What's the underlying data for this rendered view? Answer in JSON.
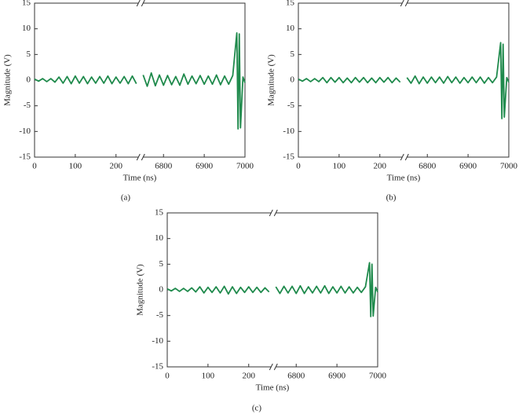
{
  "chart_data": [
    {
      "type": "line",
      "caption": "(a)",
      "xlabel": "Time (ns)",
      "ylabel": "Magnitude (V)",
      "color": "#1f8a4c",
      "ylim": [
        -15,
        15
      ],
      "yticks": [
        -15,
        -10,
        -5,
        0,
        5,
        10,
        15
      ],
      "x_segments": [
        {
          "xlim": [
            0,
            255
          ],
          "xticks": [
            0,
            100,
            200
          ]
        },
        {
          "xlim": [
            6750,
            7000
          ],
          "xticks": [
            6800,
            6900,
            7000
          ]
        }
      ],
      "x": [
        0,
        10,
        20,
        30,
        40,
        50,
        60,
        70,
        80,
        90,
        100,
        110,
        120,
        130,
        140,
        150,
        160,
        170,
        180,
        190,
        200,
        210,
        220,
        230,
        240,
        250,
        6750,
        6760,
        6770,
        6780,
        6790,
        6800,
        6810,
        6820,
        6830,
        6840,
        6850,
        6860,
        6870,
        6880,
        6890,
        6900,
        6910,
        6920,
        6930,
        6940,
        6950,
        6960,
        6970,
        6980,
        6983,
        6986,
        6989,
        6995,
        7000
      ],
      "values": [
        0.2,
        -0.2,
        0.3,
        -0.3,
        0.3,
        -0.4,
        0.6,
        -0.6,
        0.7,
        -0.7,
        0.8,
        -0.6,
        0.7,
        -0.7,
        0.6,
        -0.6,
        0.7,
        -0.6,
        0.8,
        -0.7,
        0.6,
        -0.6,
        0.7,
        -0.7,
        0.8,
        -0.7,
        1.0,
        -1.2,
        1.4,
        -1.1,
        1.0,
        -1.0,
        0.9,
        -0.9,
        0.7,
        -1.0,
        1.2,
        -0.8,
        0.8,
        -0.7,
        0.9,
        -0.8,
        0.8,
        -0.8,
        1.0,
        -0.9,
        0.8,
        -0.8,
        0.9,
        9.2,
        -9.5,
        9.0,
        -9.3,
        0.6,
        -0.5
      ]
    },
    {
      "type": "line",
      "caption": "(b)",
      "xlabel": "Time (ns)",
      "ylabel": "Magnitude (V)",
      "color": "#1f8a4c",
      "ylim": [
        -15,
        15
      ],
      "yticks": [
        -15,
        -10,
        -5,
        0,
        5,
        10,
        15
      ],
      "x_segments": [
        {
          "xlim": [
            0,
            255
          ],
          "xticks": [
            0,
            100,
            200
          ]
        },
        {
          "xlim": [
            6750,
            7000
          ],
          "xticks": [
            6800,
            6900,
            7000
          ]
        }
      ],
      "x": [
        0,
        10,
        20,
        30,
        40,
        50,
        60,
        70,
        80,
        90,
        100,
        110,
        120,
        130,
        140,
        150,
        160,
        170,
        180,
        190,
        200,
        210,
        220,
        230,
        240,
        250,
        6750,
        6760,
        6770,
        6780,
        6790,
        6800,
        6810,
        6820,
        6830,
        6840,
        6850,
        6860,
        6870,
        6880,
        6890,
        6900,
        6910,
        6920,
        6930,
        6940,
        6950,
        6960,
        6970,
        6980,
        6983,
        6986,
        6989,
        6995,
        7000
      ],
      "values": [
        0.2,
        -0.2,
        0.3,
        -0.3,
        0.3,
        -0.3,
        0.5,
        -0.5,
        0.5,
        -0.4,
        0.5,
        -0.5,
        0.4,
        -0.5,
        0.5,
        -0.4,
        0.5,
        -0.5,
        0.4,
        -0.5,
        0.5,
        -0.4,
        0.5,
        -0.5,
        0.4,
        -0.4,
        0.5,
        -0.6,
        0.8,
        -0.7,
        0.6,
        -0.6,
        0.6,
        -0.5,
        0.6,
        -0.6,
        0.7,
        -0.5,
        0.6,
        -0.6,
        0.5,
        -0.5,
        0.6,
        -0.5,
        0.6,
        -0.6,
        0.5,
        -0.5,
        0.6,
        7.3,
        -7.5,
        7.0,
        -7.2,
        0.5,
        -0.4
      ]
    },
    {
      "type": "line",
      "caption": "(c)",
      "xlabel": "Time (ns)",
      "ylabel": "Magnitude (V)",
      "color": "#1f8a4c",
      "ylim": [
        -15,
        15
      ],
      "yticks": [
        -15,
        -10,
        -5,
        0,
        5,
        10,
        15
      ],
      "x_segments": [
        {
          "xlim": [
            0,
            255
          ],
          "xticks": [
            0,
            100,
            200
          ]
        },
        {
          "xlim": [
            6750,
            7000
          ],
          "xticks": [
            6800,
            6900,
            7000
          ]
        }
      ],
      "x": [
        0,
        10,
        20,
        30,
        40,
        50,
        60,
        70,
        80,
        90,
        100,
        110,
        120,
        130,
        140,
        150,
        160,
        170,
        180,
        190,
        200,
        210,
        220,
        230,
        240,
        250,
        6750,
        6760,
        6770,
        6780,
        6790,
        6800,
        6810,
        6820,
        6830,
        6840,
        6850,
        6860,
        6870,
        6880,
        6890,
        6900,
        6910,
        6920,
        6930,
        6940,
        6950,
        6960,
        6970,
        6980,
        6983,
        6986,
        6989,
        6995,
        7000
      ],
      "values": [
        0.2,
        -0.2,
        0.3,
        -0.3,
        0.3,
        -0.3,
        0.4,
        -0.4,
        0.6,
        -0.6,
        0.5,
        -0.5,
        0.6,
        -0.6,
        0.7,
        -0.8,
        0.6,
        -0.7,
        0.5,
        -0.5,
        0.6,
        -0.5,
        0.5,
        -0.5,
        0.4,
        -0.4,
        0.6,
        -0.7,
        0.7,
        -0.6,
        0.7,
        -0.7,
        0.8,
        -0.7,
        0.6,
        -0.6,
        0.7,
        -0.6,
        0.8,
        -0.7,
        0.6,
        -0.6,
        0.7,
        -0.6,
        0.6,
        -0.6,
        0.5,
        -0.5,
        0.6,
        5.3,
        -5.2,
        5.0,
        -5.1,
        0.5,
        -0.4
      ]
    }
  ]
}
